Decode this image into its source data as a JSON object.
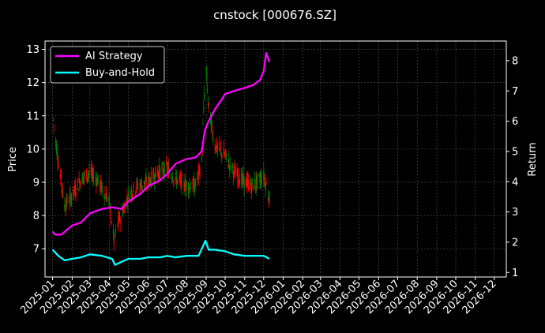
{
  "chart_data": {
    "type": "line",
    "title": "cnstock [000676.SZ]",
    "ylabel_left": "Price",
    "ylabel_right": "Return",
    "yticks_left": [
      "7",
      "8",
      "9",
      "10",
      "11",
      "12",
      "13"
    ],
    "ylim_left": [
      6.15,
      13.25
    ],
    "yticks_right": [
      "1",
      "2",
      "3",
      "4",
      "5",
      "6",
      "7",
      "8"
    ],
    "ylim_right": [
      0.85,
      8.65
    ],
    "x_tick_labels": [
      "2025-01",
      "2025-02",
      "2025-03",
      "2025-04",
      "2025-05",
      "2025-06",
      "2025-07",
      "2025-08",
      "2025-09",
      "2025-10",
      "2025-11",
      "2025-12",
      "2026-01",
      "2026-02",
      "2026-03",
      "2026-04",
      "2026-05",
      "2026-06",
      "2026-07",
      "2026-08",
      "2026-09",
      "2026-10",
      "2026-11",
      "2026-12"
    ],
    "xlim": [
      "2024-12-20",
      "2026-12-20"
    ],
    "grid": true,
    "legend_position": "top-left",
    "colors": {
      "background": "#000000",
      "up_candle": "#ff0000",
      "down_candle": "#008000",
      "ai_strategy": "#ff00ff",
      "buy_and_hold": "#00ffff",
      "grid": "#555555"
    },
    "price_series": {
      "name": "",
      "axis": "left",
      "note_style": "candlestick",
      "x": [
        "2025-01-02",
        "2025-01-10",
        "2025-01-20",
        "2025-02-01",
        "2025-02-15",
        "2025-03-01",
        "2025-03-15",
        "2025-04-01",
        "2025-04-08",
        "2025-04-15",
        "2025-05-01",
        "2025-05-15",
        "2025-06-01",
        "2025-06-15",
        "2025-07-01",
        "2025-07-15",
        "2025-08-01",
        "2025-08-15",
        "2025-08-25",
        "2025-08-31",
        "2025-09-05",
        "2025-09-15",
        "2025-10-01",
        "2025-10-15",
        "2025-11-01",
        "2025-11-15",
        "2025-12-01",
        "2025-12-10"
      ],
      "values": [
        10.9,
        9.6,
        8.3,
        8.6,
        9.1,
        9.3,
        9.0,
        8.4,
        7.2,
        7.8,
        8.6,
        8.9,
        9.0,
        9.3,
        9.4,
        9.1,
        8.9,
        8.9,
        9.6,
        12.7,
        11.2,
        10.1,
        9.8,
        9.3,
        9.0,
        8.9,
        9.2,
        8.5
      ]
    },
    "series": [
      {
        "name": "AI Strategy",
        "axis": "right",
        "x": [
          "2025-01-01",
          "2025-01-05",
          "2025-01-15",
          "2025-02-01",
          "2025-02-15",
          "2025-03-01",
          "2025-03-20",
          "2025-04-05",
          "2025-04-20",
          "2025-05-01",
          "2025-05-20",
          "2025-06-01",
          "2025-06-20",
          "2025-07-01",
          "2025-07-15",
          "2025-08-01",
          "2025-08-15",
          "2025-08-25",
          "2025-08-30",
          "2025-09-05",
          "2025-09-15",
          "2025-09-25",
          "2025-10-01",
          "2025-10-15",
          "2025-11-01",
          "2025-11-15",
          "2025-11-25",
          "2025-12-01",
          "2025-12-05",
          "2025-12-10"
        ],
        "values": [
          2.35,
          2.25,
          2.25,
          2.55,
          2.65,
          2.95,
          3.1,
          3.15,
          3.1,
          3.35,
          3.6,
          3.85,
          4.05,
          4.25,
          4.6,
          4.75,
          4.8,
          5.0,
          5.7,
          6.0,
          6.4,
          6.7,
          6.9,
          7.0,
          7.1,
          7.2,
          7.35,
          7.65,
          8.25,
          7.95
        ]
      },
      {
        "name": "Buy-and-Hold",
        "axis": "right",
        "x": [
          "2025-01-01",
          "2025-01-10",
          "2025-01-20",
          "2025-02-01",
          "2025-02-15",
          "2025-03-01",
          "2025-03-20",
          "2025-04-05",
          "2025-04-10",
          "2025-04-20",
          "2025-05-01",
          "2025-05-20",
          "2025-06-01",
          "2025-06-20",
          "2025-07-01",
          "2025-07-15",
          "2025-08-01",
          "2025-08-20",
          "2025-08-31",
          "2025-09-05",
          "2025-09-15",
          "2025-10-01",
          "2025-10-15",
          "2025-11-01",
          "2025-11-15",
          "2025-12-01",
          "2025-12-10"
        ],
        "values": [
          1.75,
          1.55,
          1.4,
          1.45,
          1.5,
          1.6,
          1.55,
          1.45,
          1.25,
          1.35,
          1.45,
          1.45,
          1.5,
          1.5,
          1.55,
          1.5,
          1.55,
          1.55,
          2.05,
          1.75,
          1.75,
          1.7,
          1.6,
          1.55,
          1.55,
          1.55,
          1.45
        ]
      }
    ]
  }
}
